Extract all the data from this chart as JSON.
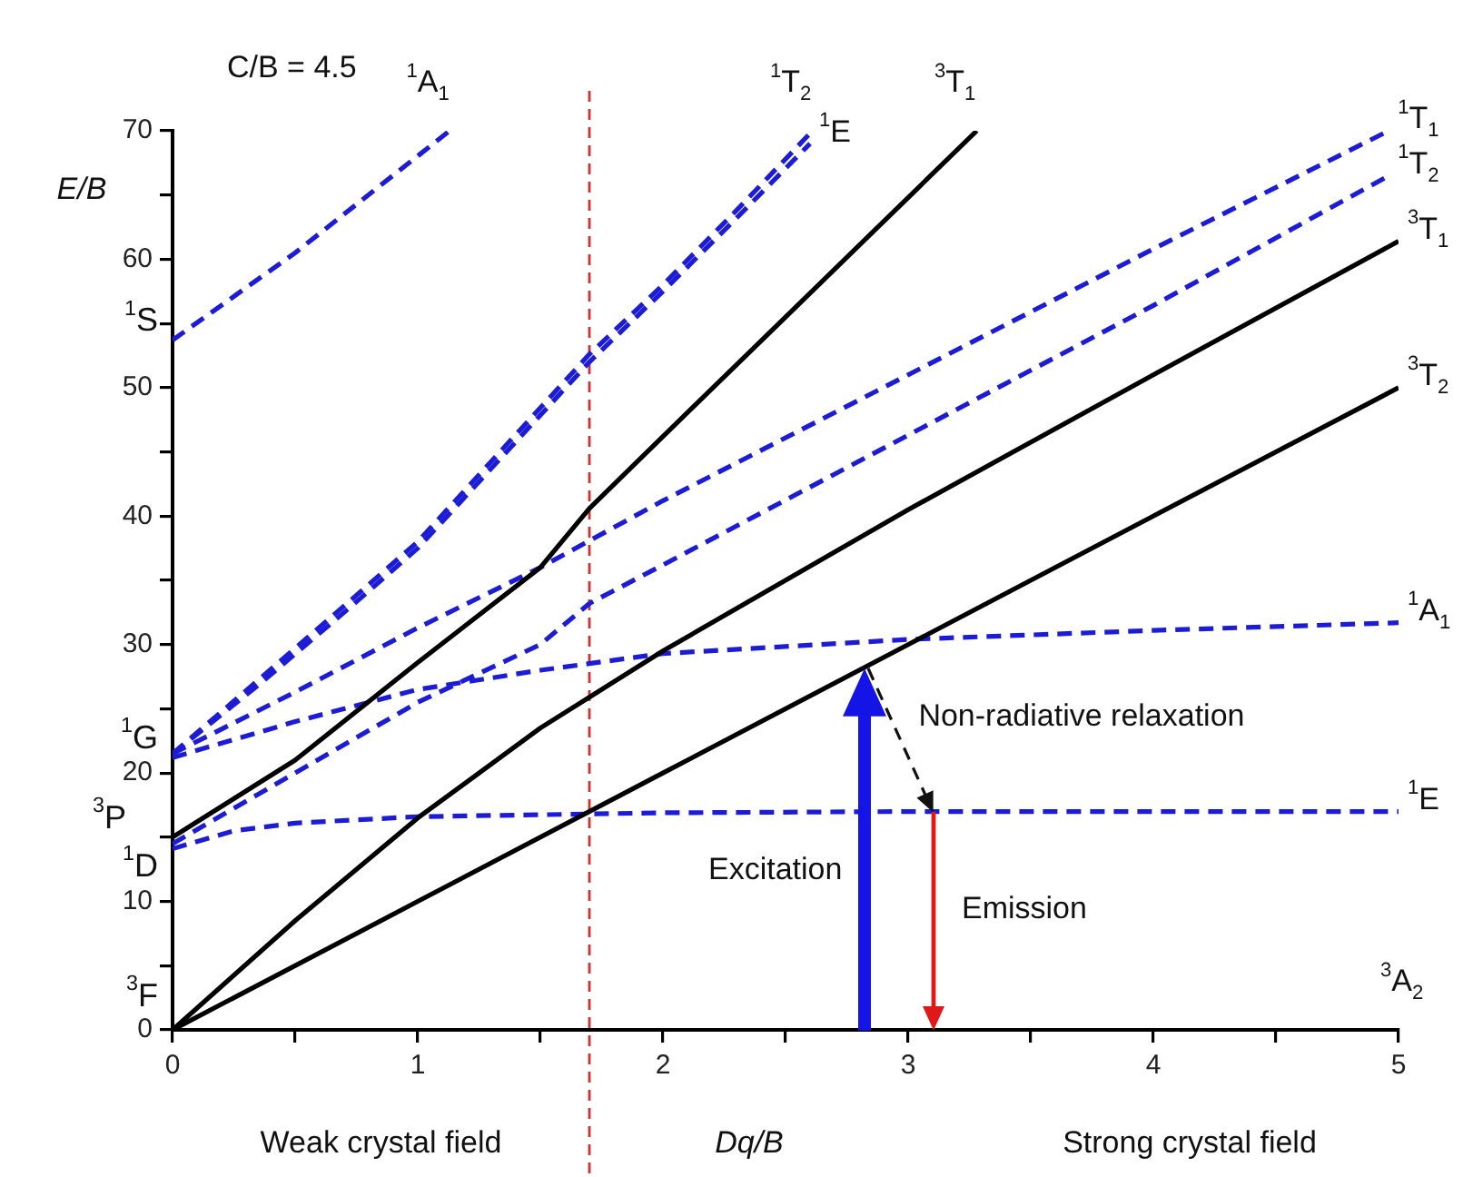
{
  "chart_data": {
    "type": "line",
    "xlabel": "Dq/B",
    "ylabel": "E/B",
    "xlim": [
      0,
      5
    ],
    "ylim": [
      0,
      70
    ],
    "xticks": [
      0,
      {
        "value": 0.5,
        "label": null
      },
      1,
      {
        "value": 1.5,
        "label": null
      },
      2,
      {
        "value": 2.5,
        "label": null
      },
      3,
      {
        "value": 3.5,
        "label": null
      },
      4,
      {
        "value": 4.5,
        "label": null
      },
      5
    ],
    "yticks": [
      0,
      {
        "value": 5,
        "label": null
      },
      10,
      {
        "value": 15,
        "label": null
      },
      20,
      {
        "value": 25,
        "label": null
      },
      30,
      {
        "value": 35,
        "label": null
      },
      40,
      {
        "value": 45,
        "label": null
      },
      50,
      {
        "value": 55,
        "label": null
      },
      60,
      {
        "value": 65,
        "label": null
      },
      70
    ],
    "grid": false,
    "legend": false,
    "marker": "none",
    "ref_lines": [
      {
        "axis": "x",
        "value": 1.7,
        "color": "#d03030",
        "line_style": "dashed"
      }
    ],
    "annotations": [
      "C/B = 4.5",
      "Weak crystal field",
      "Strong crystal field",
      "Excitation",
      "$^{3}$A$_{2}$",
      {
        "text": "Non-radiative relaxation",
        "x": 2.82,
        "y": 28.2
      },
      {
        "text": "Emission",
        "x": 3.1,
        "y": 17
      },
      {
        "text": "$^{1}$S",
        "x": 0,
        "y": 53.7
      },
      {
        "text": "$^{1}$G",
        "x": 0,
        "y": 21.2
      },
      {
        "text": "$^{3}$P",
        "x": 0,
        "y": 15
      },
      {
        "text": "$^{1}$D",
        "x": 0,
        "y": 14.1
      },
      {
        "text": "$^{3}$F",
        "x": 0,
        "y": 0
      }
    ],
    "series": [
      {
        "name": "$^{3}$T$_{2}$",
        "color": "#000000",
        "line_style": "solid",
        "x": [
          0,
          1,
          2,
          3,
          4,
          5
        ],
        "values": [
          0,
          10,
          20,
          30,
          40,
          50
        ]
      },
      {
        "name": "$^{3}$T$_{1}$",
        "color": "#000000",
        "line_style": "solid",
        "x": [
          0,
          0.5,
          1,
          1.5,
          2,
          3,
          4,
          5
        ],
        "values": [
          0,
          8.5,
          16.5,
          23.5,
          29.5,
          40.5,
          51,
          61.4
        ]
      },
      {
        "name": "$^{3}$T$_{1}$",
        "color": "#000000",
        "line_style": "solid",
        "x": [
          0,
          0.5,
          1,
          1.5,
          1.7,
          2,
          2.5,
          3,
          3.28
        ],
        "values": [
          15,
          21,
          28.6,
          36,
          40.6,
          46.2,
          55.5,
          64.8,
          70
        ]
      },
      {
        "name": "$^{1}$E",
        "color": "#1c1cd6",
        "line_style": "dashed",
        "x": [
          0,
          0.25,
          0.5,
          1,
          2,
          3,
          5
        ],
        "values": [
          14.1,
          15.5,
          16.1,
          16.6,
          16.9,
          17,
          17
        ]
      },
      {
        "name": "$^{1}$A$_{1}$",
        "color": "#1c1cd6",
        "line_style": "dashed",
        "x": [
          0,
          0.5,
          1,
          1.5,
          2,
          3,
          4,
          5
        ],
        "values": [
          21.2,
          24,
          26.5,
          28,
          29.3,
          30.4,
          31.1,
          31.7
        ]
      },
      {
        "name": "$^{1}$T$_{2}$",
        "color": "#1c1cd6",
        "line_style": "dashed",
        "x": [
          0,
          0.5,
          1,
          1.5,
          1.7,
          2,
          3,
          4,
          4.96
        ],
        "values": [
          14.5,
          20,
          25.5,
          30,
          33.2,
          36.2,
          46.3,
          56.4,
          66.5
        ]
      },
      {
        "name": "$^{1}$T$_{1}$",
        "color": "#1c1cd6",
        "line_style": "dashed",
        "x": [
          0,
          0.5,
          1,
          1.5,
          2,
          3,
          4,
          4.96
        ],
        "values": [
          21.5,
          26.3,
          31.3,
          36,
          41.2,
          51,
          60.8,
          70
        ]
      },
      {
        "name": "$^{1}$T$_{2}$",
        "color": "#1c1cd6",
        "line_style": "dashed",
        "x": [
          0,
          0.36,
          0.73,
          1,
          1.7,
          2,
          2.3,
          2.61
        ],
        "values": [
          21.5,
          27.4,
          33.5,
          38,
          52.6,
          58,
          63.8,
          70
        ]
      },
      {
        "name": "$^{1}$E",
        "color": "#1c1cd6",
        "line_style": "dashed",
        "x": [
          0,
          0.36,
          0.73,
          1,
          1.7,
          2,
          2.3,
          2.6
        ],
        "values": [
          21.5,
          27,
          33,
          37.5,
          52,
          57.5,
          63.2,
          69
        ]
      },
      {
        "name": "$^{1}$A$_{1}$",
        "color": "#1c1cd6",
        "line_style": "dashed",
        "x": [
          0,
          0.5,
          1.13
        ],
        "values": [
          53.7,
          60.5,
          70
        ]
      }
    ]
  }
}
